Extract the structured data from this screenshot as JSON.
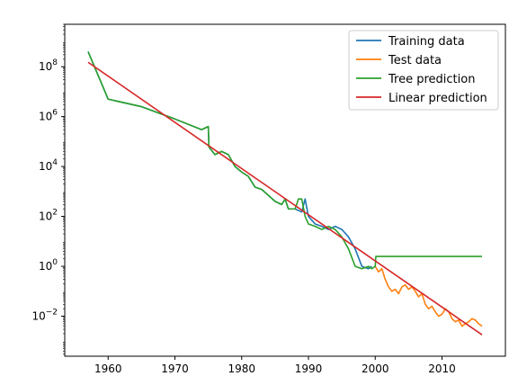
{
  "chart_data": {
    "type": "line",
    "title": "",
    "xlabel": "",
    "ylabel": "",
    "x_scale": "linear",
    "y_scale": "log",
    "xlim": [
      1953.5,
      2019.5
    ],
    "ylim": [
      0.00025,
      5000000000
    ],
    "grid": false,
    "legend_position": "top-right",
    "x_ticks": [
      1960,
      1970,
      1980,
      1990,
      2000,
      2010
    ],
    "y_ticks": [
      {
        "value": 0.01,
        "base": "10",
        "exp": "−2"
      },
      {
        "value": 1,
        "base": "10",
        "exp": "0"
      },
      {
        "value": 100,
        "base": "10",
        "exp": "2"
      },
      {
        "value": 10000,
        "base": "10",
        "exp": "4"
      },
      {
        "value": 1000000,
        "base": "10",
        "exp": "6"
      },
      {
        "value": 100000000,
        "base": "10",
        "exp": "8"
      }
    ],
    "series": [
      {
        "name": "Training data",
        "color": "#1f77b4",
        "x": [
          1957,
          1960,
          1965,
          1970,
          1974,
          1975,
          1975.1,
          1976,
          1976.5,
          1977,
          1978,
          1979,
          1980,
          1981,
          1982,
          1983,
          1984,
          1985,
          1986,
          1986.5,
          1987,
          1988,
          1989,
          1989.5,
          1990,
          1991,
          1992,
          1993,
          1994,
          1995,
          1996,
          1997,
          1998,
          1999,
          1999.5
        ],
        "y": [
          400000000,
          5000000,
          2500000,
          800000,
          300000,
          400000,
          60000,
          30000,
          35000,
          40000,
          30000,
          10000,
          6000,
          4000,
          1500,
          1200,
          700,
          400,
          300,
          500,
          200,
          200,
          150,
          500,
          100,
          50,
          40,
          30,
          40,
          30,
          15,
          5,
          1,
          0.8,
          1
        ]
      },
      {
        "name": "Test data",
        "color": "#ff7f0e",
        "x": [
          2000,
          2000.5,
          2001,
          2001.5,
          2002,
          2002.5,
          2003,
          2003.5,
          2004,
          2004.5,
          2005,
          2005.5,
          2006,
          2006.5,
          2007,
          2007.5,
          2008,
          2008.5,
          2009,
          2009.5,
          2010,
          2010.5,
          2011,
          2011.5,
          2012,
          2012.5,
          2013,
          2013.5,
          2014,
          2014.5,
          2015,
          2015.5,
          2016
        ],
        "y": [
          1,
          0.6,
          0.8,
          0.3,
          0.15,
          0.1,
          0.12,
          0.08,
          0.15,
          0.18,
          0.12,
          0.15,
          0.1,
          0.06,
          0.08,
          0.03,
          0.02,
          0.025,
          0.015,
          0.01,
          0.012,
          0.02,
          0.015,
          0.008,
          0.006,
          0.007,
          0.004,
          0.005,
          0.006,
          0.008,
          0.007,
          0.005,
          0.004
        ]
      },
      {
        "name": "Tree prediction",
        "color": "#2ca02c",
        "x": [
          1957,
          1960,
          1965,
          1970,
          1974,
          1975,
          1975.1,
          1976,
          1976.5,
          1977,
          1978,
          1979,
          1980,
          1981,
          1982,
          1983,
          1984,
          1985,
          1986,
          1986.5,
          1987,
          1988,
          1988.5,
          1989,
          1989.5,
          1990,
          1991,
          1992,
          1993,
          1994,
          1995,
          1996,
          1997,
          1998,
          1999,
          1999.5,
          2000,
          2000.1,
          2016
        ],
        "y": [
          400000000,
          5000000,
          2500000,
          800000,
          300000,
          400000,
          60000,
          30000,
          35000,
          40000,
          30000,
          10000,
          6000,
          4000,
          1500,
          1200,
          700,
          400,
          300,
          500,
          200,
          200,
          500,
          500,
          100,
          50,
          40,
          30,
          40,
          30,
          15,
          5,
          1,
          0.8,
          1,
          0.8,
          1,
          2.5,
          2.5
        ]
      },
      {
        "name": "Linear prediction",
        "color": "#d62728",
        "x": [
          1957,
          2016
        ],
        "y": [
          150000000,
          0.0018
        ]
      }
    ]
  }
}
